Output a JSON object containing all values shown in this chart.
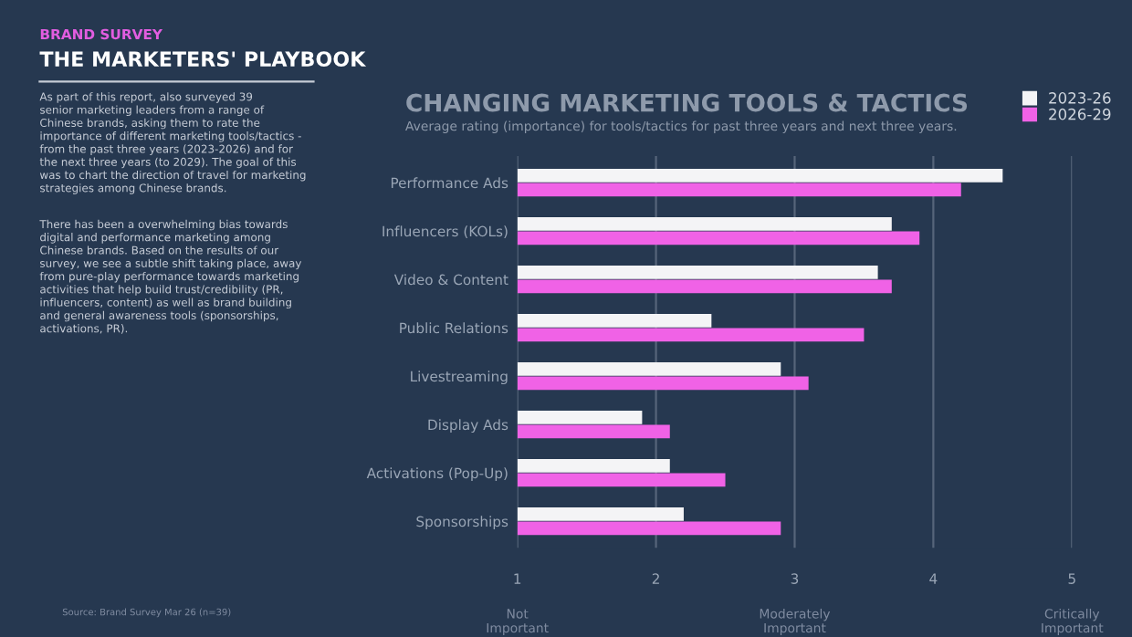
{
  "chart_data": {
    "type": "bar",
    "orientation": "horizontal",
    "title": "CHANGING MARKETING TOOLS & TACTICS",
    "subtitle": "Average rating (importance) for tools/tactics for past three years and next three years.",
    "categories": [
      "Performance Ads",
      "Influencers (KOLs)",
      "Video & Content",
      "Public Relations",
      "Livestreaming",
      "Display Ads",
      "Activations (Pop-Up)",
      "Sponsorships"
    ],
    "series": [
      {
        "name": "2023-26",
        "color": "#f4f4f6",
        "values": [
          4.5,
          3.7,
          3.6,
          2.4,
          2.9,
          1.9,
          2.1,
          2.2
        ]
      },
      {
        "name": "2026-29",
        "color": "#f062e6",
        "values": [
          4.2,
          3.9,
          3.7,
          3.5,
          3.1,
          2.1,
          2.5,
          2.9
        ]
      }
    ],
    "xlim": [
      1,
      5
    ],
    "xticks": [
      1,
      2,
      3,
      4,
      5
    ],
    "grid": "x",
    "legend": "top right",
    "annotations": [
      "BRAND SURVEY",
      "THE MARKETERS' PLAYBOOK",
      "As part of this report, also surveyed 39\nsenior marketing leaders from a range of\nChinese brands, asking them to rate the\nimportance of different marketing tools/tactics -\nfrom the past three years (2023-2026) and for\nthe next three years (to 2029). The goal of this\nwas to chart the direction of travel for marketing\nstrategies among Chinese brands.",
      "There has been a overwhelming bias towards\ndigital and performance marketing among\nChinese brands. Based on the results of our\nsurvey, we see a subtle shift taking place, away\nfrom pure-play performance towards marketing\nactivities that help build trust/credibility (PR,\ninfluencers, content) as well as brand building\nand general awareness tools (sponsorships,\nactivations, PR).",
      "Source: Brand Survey Mar 26 (n=39)",
      "Not\nImportant",
      "Moderately\nImportant",
      "Critically\nImportant"
    ]
  }
}
